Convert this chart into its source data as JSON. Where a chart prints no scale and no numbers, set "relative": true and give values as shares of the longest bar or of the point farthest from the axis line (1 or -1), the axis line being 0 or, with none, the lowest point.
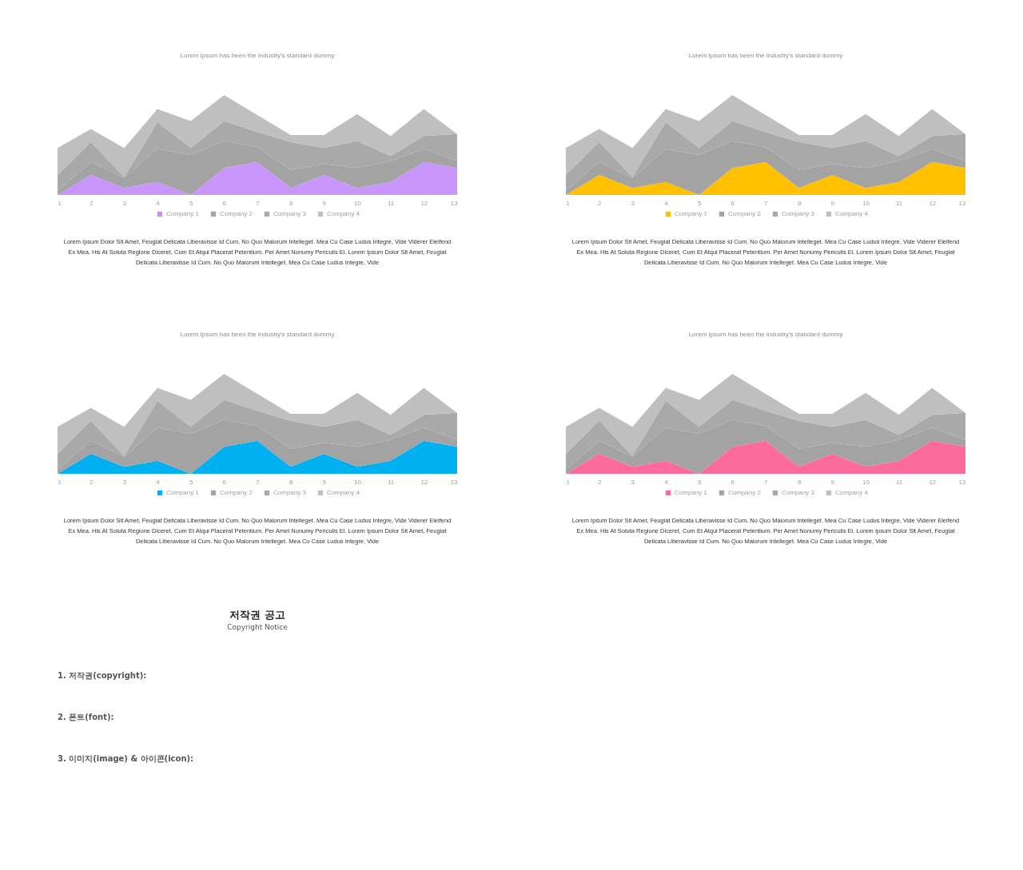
{
  "chart_data": [
    {
      "type": "area",
      "subtitle": "Lorem Ipsum has been the industry's standard dummy",
      "x": [
        1,
        2,
        3,
        4,
        5,
        6,
        7,
        8,
        9,
        10,
        11,
        12,
        13
      ],
      "xlim": [
        1,
        13
      ],
      "xticks": [
        1,
        2,
        3,
        4,
        5,
        6,
        7,
        8,
        9,
        10,
        11,
        12,
        13
      ],
      "stacked": true,
      "relative": true,
      "legend": "bottom",
      "series": [
        {
          "name": "Company 1",
          "color": "#c896fa",
          "values": [
            0,
            0.2,
            0.07,
            0.13,
            0,
            0.27,
            0.33,
            0.07,
            0.2,
            0.07,
            0.13,
            0.33,
            0.27
          ]
        },
        {
          "name": "Company 2",
          "color": "#a3a3a3",
          "values": [
            0.04,
            0.13,
            0.1,
            0.33,
            0.4,
            0.27,
            0.15,
            0.18,
            0.11,
            0.2,
            0.21,
            0.13,
            0.07
          ]
        },
        {
          "name": "Company 3",
          "color": "#a9a9a9",
          "values": [
            0.16,
            0.2,
            0.01,
            0.27,
            0.07,
            0.2,
            0.15,
            0.28,
            0.16,
            0.27,
            0.05,
            0.13,
            0.27
          ]
        },
        {
          "name": "Company 4",
          "color": "#bfbfbf",
          "values": [
            0.27,
            0.13,
            0.29,
            0.13,
            0.27,
            0.26,
            0.17,
            0.07,
            0.13,
            0.27,
            0.2,
            0.27,
            0
          ]
        }
      ],
      "annotations": [
        "Lorem Ipsum Dolor Sit Amet, Feugiat Delicata Liberavisse Id Cum. No Quo Maiorum Intelleget. Mea Cu Case Ludus Integre, Vide Viderer Eleifend Ex Mea. His At Soluta Regione Diceret, Cum Et Atqui Placerat Petentium. Per Amet Nonumy Periculis Ei. Lorem Ipsum Dolor Sit Amet, Feugiat Delicata Liberavisse Id Cum. No Quo Maiorum Intelleget. Mea Cu Case Ludus Integre, Vide"
      ]
    },
    {
      "type": "area",
      "subtitle": "Lorem Ipsum has been the industry's standard dummy",
      "x": [
        1,
        2,
        3,
        4,
        5,
        6,
        7,
        8,
        9,
        10,
        11,
        12,
        13
      ],
      "xlim": [
        1,
        13
      ],
      "xticks": [
        1,
        2,
        3,
        4,
        5,
        6,
        7,
        8,
        9,
        10,
        11,
        12,
        13
      ],
      "stacked": true,
      "relative": true,
      "legend": "bottom",
      "series": [
        {
          "name": "Company 1",
          "color": "#ffc000",
          "values": [
            0,
            0.2,
            0.07,
            0.13,
            0,
            0.27,
            0.33,
            0.07,
            0.2,
            0.07,
            0.13,
            0.33,
            0.27
          ]
        },
        {
          "name": "Company 2",
          "color": "#a3a3a3",
          "values": [
            0.04,
            0.13,
            0.1,
            0.33,
            0.4,
            0.27,
            0.15,
            0.18,
            0.11,
            0.2,
            0.21,
            0.13,
            0.07
          ]
        },
        {
          "name": "Company 3",
          "color": "#a9a9a9",
          "values": [
            0.16,
            0.2,
            0.01,
            0.27,
            0.07,
            0.2,
            0.15,
            0.28,
            0.16,
            0.27,
            0.05,
            0.13,
            0.27
          ]
        },
        {
          "name": "Company 4",
          "color": "#bfbfbf",
          "values": [
            0.27,
            0.13,
            0.29,
            0.13,
            0.27,
            0.26,
            0.17,
            0.07,
            0.13,
            0.27,
            0.2,
            0.27,
            0
          ]
        }
      ],
      "annotations": [
        "Lorem Ipsum Dolor Sit Amet, Feugiat Delicata Liberavisse Id Cum. No Quo Maiorum Intelleget. Mea Cu Case Ludus Integre, Vide Viderer Eleifend Ex Mea. His At Soluta Regione Diceret, Cum Et Atqui Placerat Petentium. Per Amet Nonumy Periculis Ei. Lorem Ipsum Dolor Sit Amet, Feugiat Delicata Liberavisse Id Cum. No Quo Maiorum Intelleget. Mea Cu Case Ludus Integre, Vide"
      ]
    },
    {
      "type": "area",
      "subtitle": "Lorem Ipsum has been the industry's standard dummy",
      "x": [
        1,
        2,
        3,
        4,
        5,
        6,
        7,
        8,
        9,
        10,
        11,
        12,
        13
      ],
      "xlim": [
        1,
        13
      ],
      "xticks": [
        1,
        2,
        3,
        4,
        5,
        6,
        7,
        8,
        9,
        10,
        11,
        12,
        13
      ],
      "stacked": true,
      "relative": true,
      "legend": "bottom",
      "series": [
        {
          "name": "Company 1",
          "color": "#00b0f0",
          "values": [
            0,
            0.2,
            0.07,
            0.13,
            0,
            0.27,
            0.33,
            0.07,
            0.2,
            0.07,
            0.13,
            0.33,
            0.27
          ]
        },
        {
          "name": "Company 2",
          "color": "#a3a3a3",
          "values": [
            0.04,
            0.13,
            0.1,
            0.33,
            0.4,
            0.27,
            0.15,
            0.18,
            0.11,
            0.2,
            0.21,
            0.13,
            0.07
          ]
        },
        {
          "name": "Company 3",
          "color": "#a9a9a9",
          "values": [
            0.16,
            0.2,
            0.01,
            0.27,
            0.07,
            0.2,
            0.15,
            0.28,
            0.16,
            0.27,
            0.05,
            0.13,
            0.27
          ]
        },
        {
          "name": "Company 4",
          "color": "#bfbfbf",
          "values": [
            0.27,
            0.13,
            0.29,
            0.13,
            0.27,
            0.26,
            0.17,
            0.07,
            0.13,
            0.27,
            0.2,
            0.27,
            0
          ]
        }
      ],
      "annotations": [
        "Lorem Ipsum Dolor Sit Amet, Feugiat Delicata Liberavisse Id Cum. No Quo Maiorum Intelleget. Mea Cu Case Ludus Integre, Vide Viderer Eleifend Ex Mea. His At Soluta Regione Diceret, Cum Et Atqui Placerat Petentium. Per Amet Nonumy Periculis Ei. Lorem Ipsum Dolor Sit Amet, Feugiat Delicata Liberavisse Id Cum. No Quo Maiorum Intelleget. Mea Cu Case Ludus Integre, Vide"
      ]
    },
    {
      "type": "area",
      "subtitle": "Lorem Ipsum has been the industry's standard dummy",
      "x": [
        1,
        2,
        3,
        4,
        5,
        6,
        7,
        8,
        9,
        10,
        11,
        12,
        13
      ],
      "xlim": [
        1,
        13
      ],
      "xticks": [
        1,
        2,
        3,
        4,
        5,
        6,
        7,
        8,
        9,
        10,
        11,
        12,
        13
      ],
      "stacked": true,
      "relative": true,
      "legend": "bottom",
      "series": [
        {
          "name": "Company 1",
          "color": "#fd6b9c",
          "values": [
            0,
            0.2,
            0.07,
            0.13,
            0,
            0.27,
            0.33,
            0.07,
            0.2,
            0.07,
            0.13,
            0.33,
            0.27
          ]
        },
        {
          "name": "Company 2",
          "color": "#a3a3a3",
          "values": [
            0.04,
            0.13,
            0.1,
            0.33,
            0.4,
            0.27,
            0.15,
            0.18,
            0.11,
            0.2,
            0.21,
            0.13,
            0.07
          ]
        },
        {
          "name": "Company 3",
          "color": "#a9a9a9",
          "values": [
            0.16,
            0.2,
            0.01,
            0.27,
            0.07,
            0.2,
            0.15,
            0.28,
            0.16,
            0.27,
            0.05,
            0.13,
            0.27
          ]
        },
        {
          "name": "Company 4",
          "color": "#bfbfbf",
          "values": [
            0.27,
            0.13,
            0.29,
            0.13,
            0.27,
            0.26,
            0.17,
            0.07,
            0.13,
            0.27,
            0.2,
            0.27,
            0
          ]
        }
      ],
      "annotations": [
        "Lorem Ipsum Dolor Sit Amet, Feugiat Delicata Liberavisse Id Cum. No Quo Maiorum Intelleget. Mea Cu Case Ludus Integre, Vide Viderer Eleifend Ex Mea. His At Soluta Regione Diceret, Cum Et Atqui Placerat Petentium. Per Amet Nonumy Periculis Ei. Lorem Ipsum Dolor Sit Amet, Feugiat Delicata Liberavisse Id Cum. No Quo Maiorum Intelleget. Mea Cu Case Ludus Integre, Vide"
      ]
    },
    {
      "type": "other",
      "title": "저작권 공고",
      "subtitle": "Copyright Notice",
      "annotations": [
        "1. 저작권(copyright):",
        "2. 폰트(font):",
        "3. 이미지(image) & 아이콘(icon):"
      ]
    }
  ]
}
